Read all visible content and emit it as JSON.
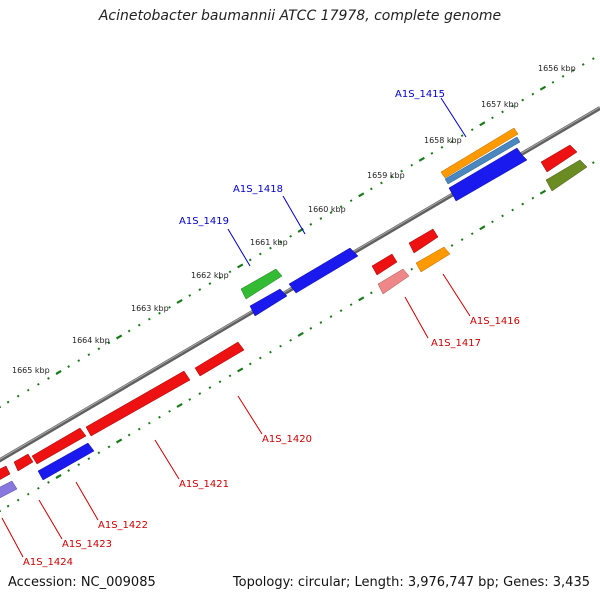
{
  "title": "Acinetobacter baumannii ATCC 17978, complete genome",
  "footer": {
    "accession": "Accession: NC_009085",
    "topology": "Topology: circular; Length: 3,976,747 bp; Genes: 3,435"
  },
  "tick_labels": [
    "1656 kbp",
    "1657 kbp",
    "1658 kbp",
    "1659 kbp",
    "1660 kbp",
    "1661 kbp",
    "1662 kbp",
    "1663 kbp",
    "1664 kbp",
    "1665 kbp"
  ],
  "gene_labels_forward": [
    "A1S_1415",
    "A1S_1418",
    "A1S_1419"
  ],
  "gene_labels_reverse": [
    "A1S_1416",
    "A1S_1417",
    "A1S_1420",
    "A1S_1421",
    "A1S_1422",
    "A1S_1423",
    "A1S_1424"
  ],
  "colors": {
    "backbone": "#808080",
    "dots": "#1a7a1a",
    "forward_label": "#0000cc",
    "reverse_label": "#cc0000",
    "red": "#ee1111",
    "blue": "#1a1aee",
    "green": "#33bb33",
    "orange": "#ff9900",
    "steelblue": "#4a86c0",
    "pink": "#ee8888",
    "olive": "#6b8c22",
    "lavender": "#8877dd"
  }
}
